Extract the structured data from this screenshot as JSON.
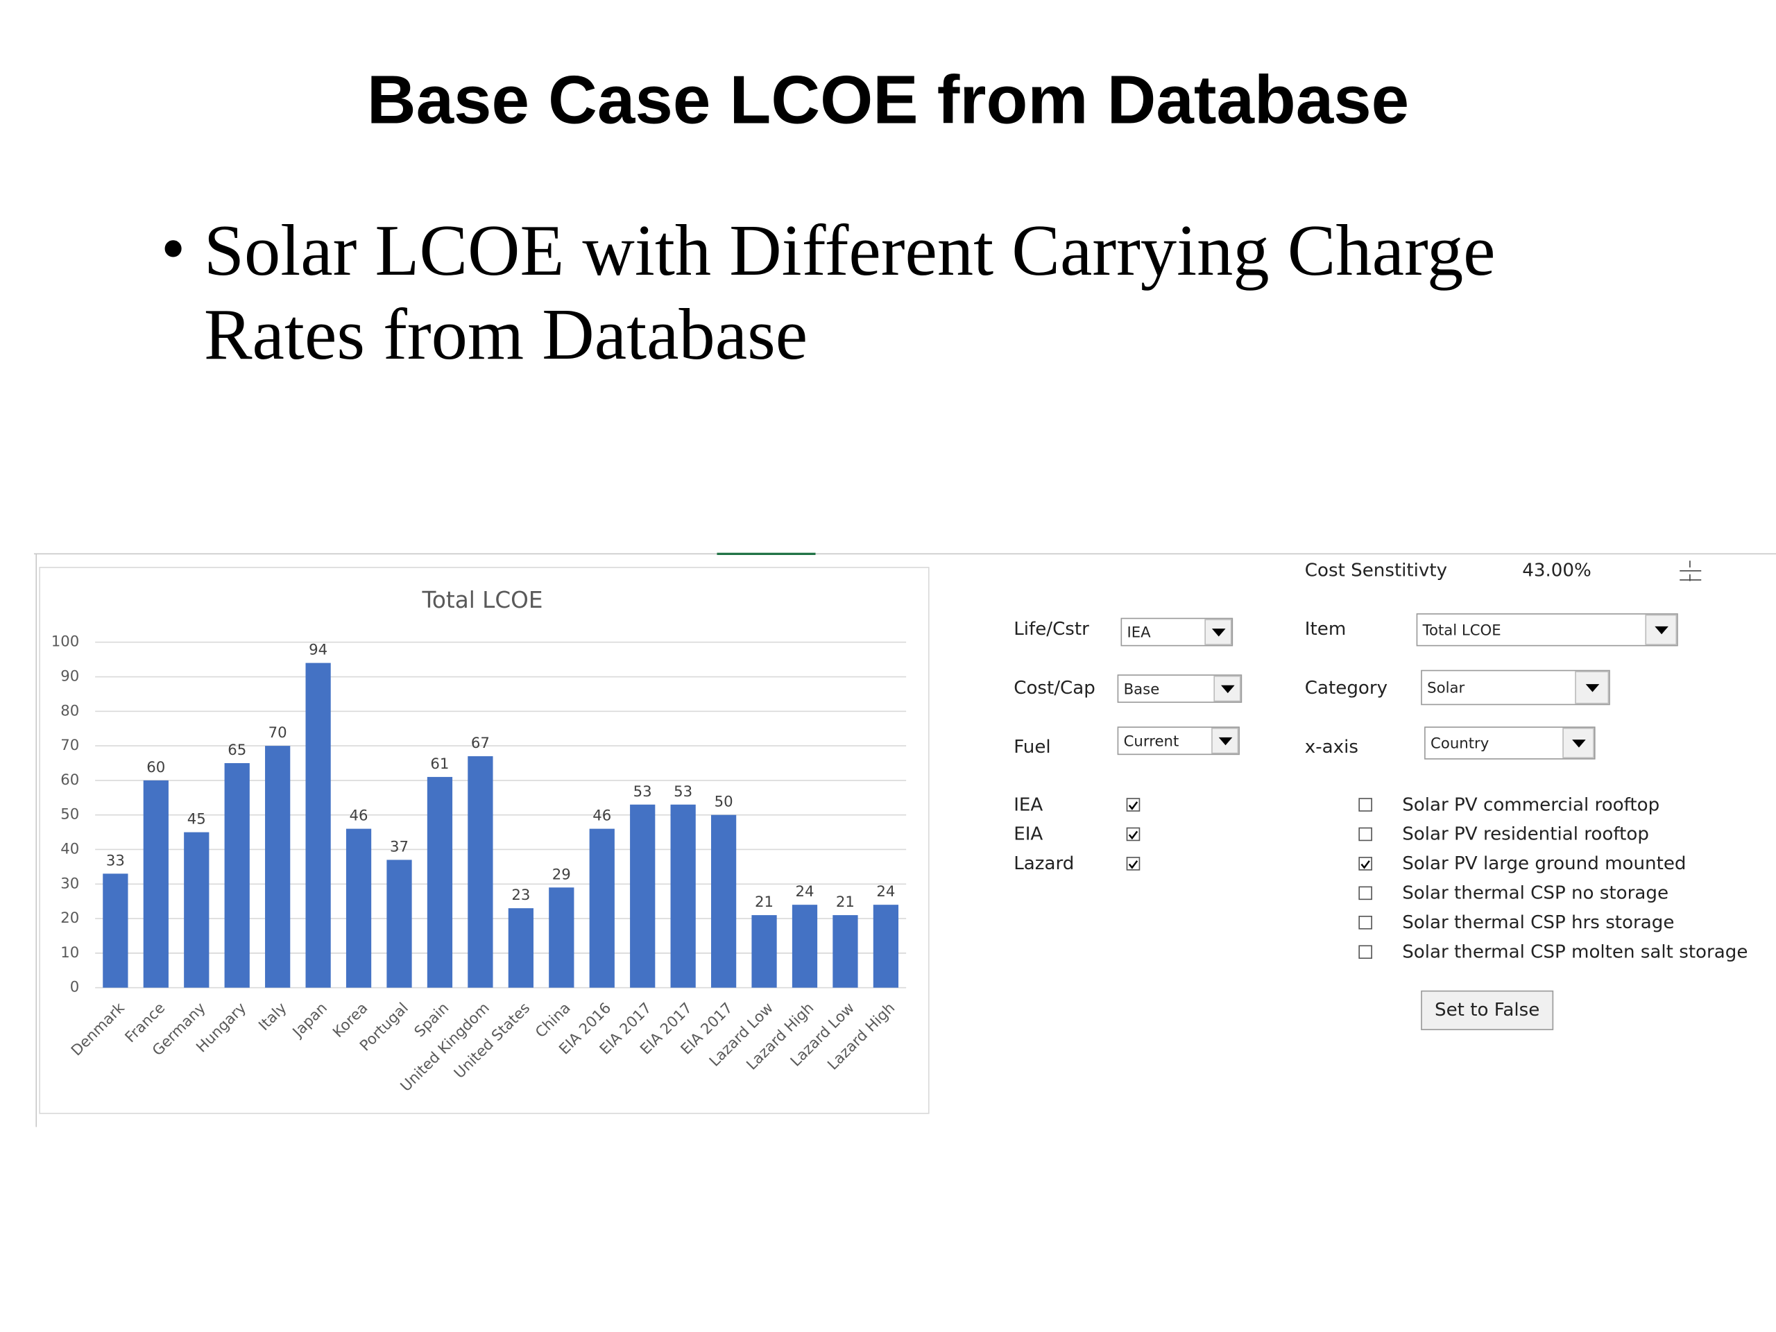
{
  "header": {
    "title": "Base Case LCOE from Database"
  },
  "bullet": {
    "lines": [
      "Solar LCOE with Different Carrying Charge",
      "Rates from Database"
    ]
  },
  "chart_data": {
    "type": "bar",
    "title": "Total LCOE",
    "categories": [
      "Denmark",
      "France",
      "Germany",
      "Hungary",
      "Italy",
      "Japan",
      "Korea",
      "Portugal",
      "Spain",
      "United Kingdom",
      "United States",
      "China",
      "EIA 2016",
      "EIA 2017",
      "EIA 2017",
      "EIA 2017",
      "Lazard Low",
      "Lazard High",
      "Lazard Low",
      "Lazard High"
    ],
    "values": [
      33,
      60,
      45,
      65,
      70,
      94,
      46,
      37,
      61,
      67,
      23,
      29,
      46,
      53,
      53,
      50,
      21,
      24,
      21,
      24
    ],
    "color": "#4472c4",
    "ylim": [
      0,
      100
    ],
    "yticks": [
      0,
      10,
      20,
      30,
      40,
      50,
      60,
      70,
      80,
      90,
      100
    ],
    "grid": true
  },
  "controls": {
    "sensitivity": {
      "label": "Cost Senstitivty",
      "value": "43.00%"
    },
    "dropdowns": [
      {
        "label": "Life/Cstr",
        "value": "IEA"
      },
      {
        "label": "Cost/Cap",
        "value": "Base"
      },
      {
        "label": "Fuel",
        "value": "Current"
      },
      {
        "label": "Item",
        "value": "Total LCOE"
      },
      {
        "label": "Category",
        "value": "Solar"
      },
      {
        "label": "x-axis",
        "value": "Country"
      }
    ],
    "sources": [
      {
        "label": "IEA",
        "checked": true
      },
      {
        "label": "EIA",
        "checked": true
      },
      {
        "label": "Lazard",
        "checked": true
      }
    ],
    "technologies": [
      {
        "label": "Solar PV commercial rooftop",
        "checked": false
      },
      {
        "label": "Solar PV residential rooftop",
        "checked": false
      },
      {
        "label": "Solar PV large ground mounted",
        "checked": true
      },
      {
        "label": "Solar thermal CSP no storage",
        "checked": false
      },
      {
        "label": "Solar thermal CSP hrs storage",
        "checked": false
      },
      {
        "label": "Solar thermal CSP molten salt  storage",
        "checked": false
      }
    ],
    "button": "Set to False"
  }
}
